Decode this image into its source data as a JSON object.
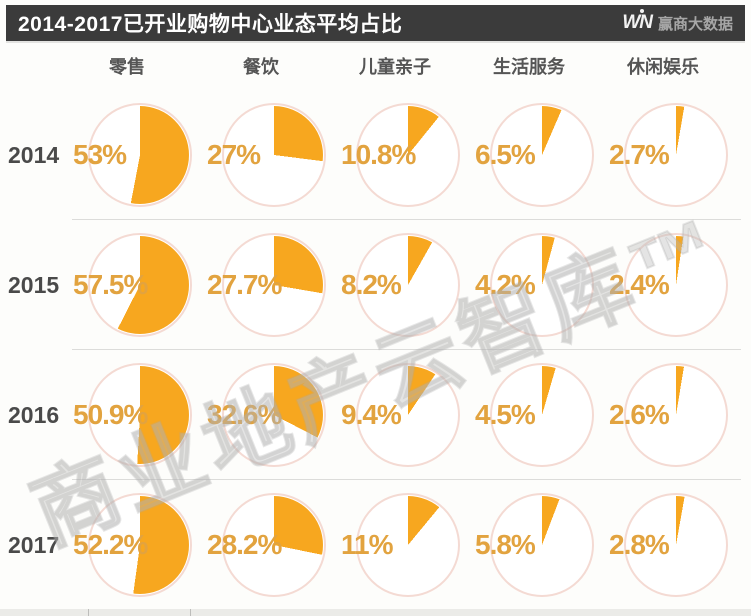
{
  "header": {
    "title": "2014-2017已开业购物中心业态平均占比",
    "logo_win": "WN",
    "logo_text": "赢商大数据"
  },
  "watermark": "商业地产云智库™",
  "colors": {
    "pie_orange": "#F7A71F",
    "label_orange": "#E2A33F",
    "circle_outline": "#F4DAD3",
    "header_bg": "#3B3B3B",
    "watermark_gray": "#BDBDBD"
  },
  "chart_data": {
    "type": "pie",
    "title": "2014-2017已开业购物中心业态平均占比",
    "unit": "%",
    "pie_style": {
      "start_angle_deg": 0,
      "direction": "clockwise",
      "legend_position": "none"
    },
    "categories": [
      "零售",
      "餐饮",
      "儿童亲子",
      "生活服务",
      "休闲娱乐"
    ],
    "rows": [
      {
        "year": "2014",
        "values": [
          53,
          27,
          10.8,
          6.5,
          2.7
        ],
        "labels": [
          "53%",
          "27%",
          "10.8%",
          "6.5%",
          "2.7%"
        ]
      },
      {
        "year": "2015",
        "values": [
          57.5,
          27.7,
          8.2,
          4.2,
          2.4
        ],
        "labels": [
          "57.5%",
          "27.7%",
          "8.2%",
          "4.2%",
          "2.4%"
        ]
      },
      {
        "year": "2016",
        "values": [
          50.9,
          32.6,
          9.4,
          4.5,
          2.6
        ],
        "labels": [
          "50.9%",
          "32.6%",
          "9.4%",
          "4.5%",
          "2.6%"
        ]
      },
      {
        "year": "2017",
        "values": [
          52.2,
          28.2,
          11,
          5.8,
          2.8
        ],
        "labels": [
          "52.2%",
          "28.2%",
          "11%",
          "5.8%",
          "2.8%"
        ]
      }
    ]
  }
}
